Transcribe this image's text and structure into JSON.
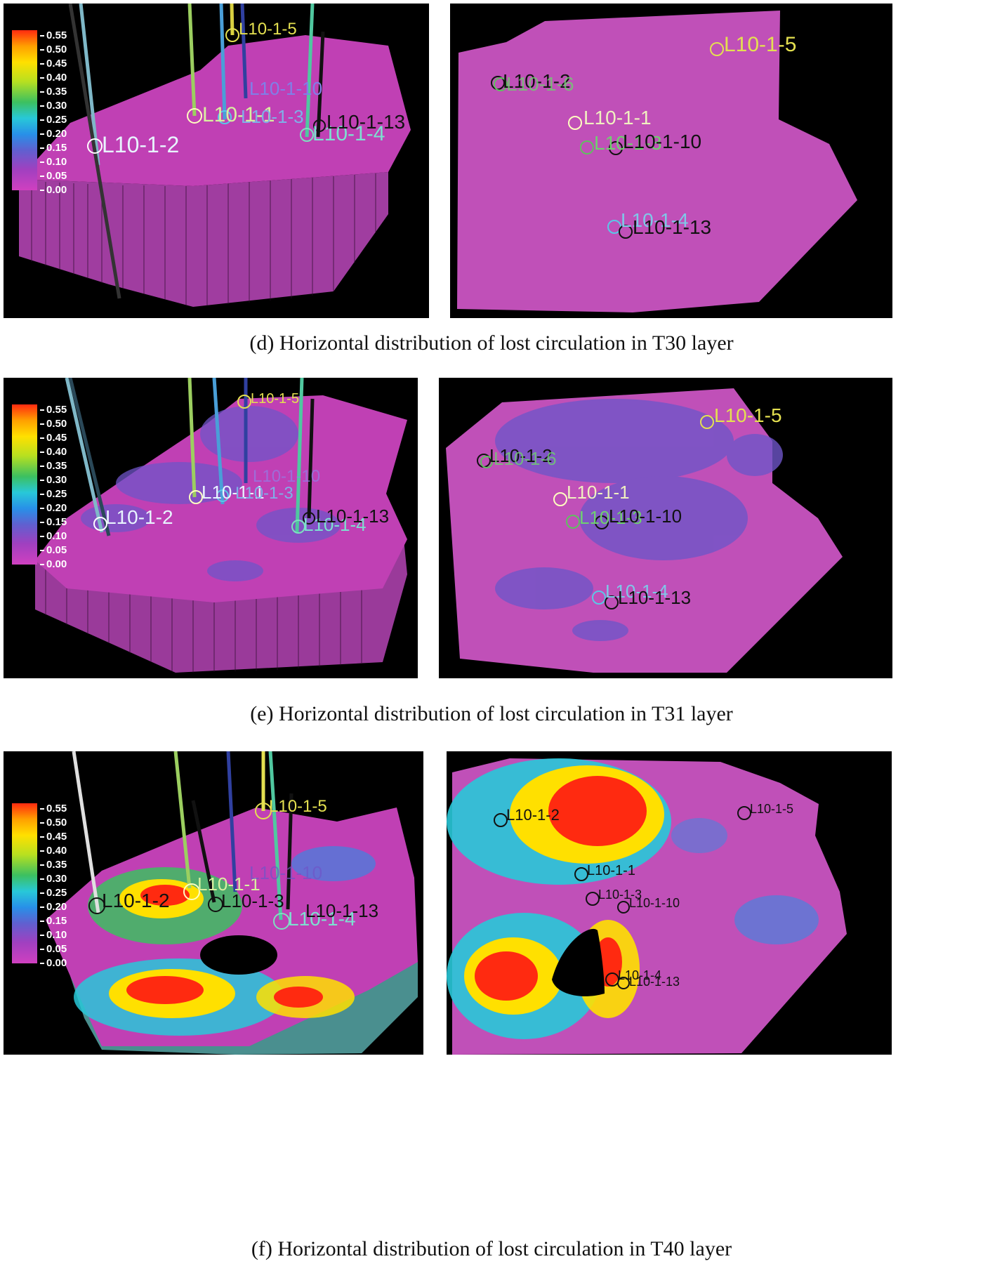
{
  "legend_ticks": [
    "0.55",
    "0.50",
    "0.45",
    "0.40",
    "0.35",
    "0.30",
    "0.25",
    "0.20",
    "0.15",
    "0.10",
    "0.05",
    "0.00"
  ],
  "captions": {
    "d": "(d) Horizontal distribution of lost circulation in T30 layer",
    "e": "(e) Horizontal distribution of lost circulation in T31 layer",
    "f": "(f) Horizontal distribution of lost circulation in T40 layer"
  },
  "wells": {
    "w2": "L10-1-2",
    "w5": "L10-1-5",
    "w1": "L10-1-1",
    "w3": "L10-1-3",
    "w4": "L10-1-4",
    "w10": "L10-1-10",
    "w13": "L10-1-13",
    "w6": "L10-1-6"
  },
  "colors": {
    "surface_pink": "#c040b4",
    "anomaly_blue": "#6f55c8",
    "high_red": "#ff2a10",
    "mid_green": "#3cc060",
    "label_yellow": "#e4e050",
    "label_cyan": "#5ac8e8"
  }
}
